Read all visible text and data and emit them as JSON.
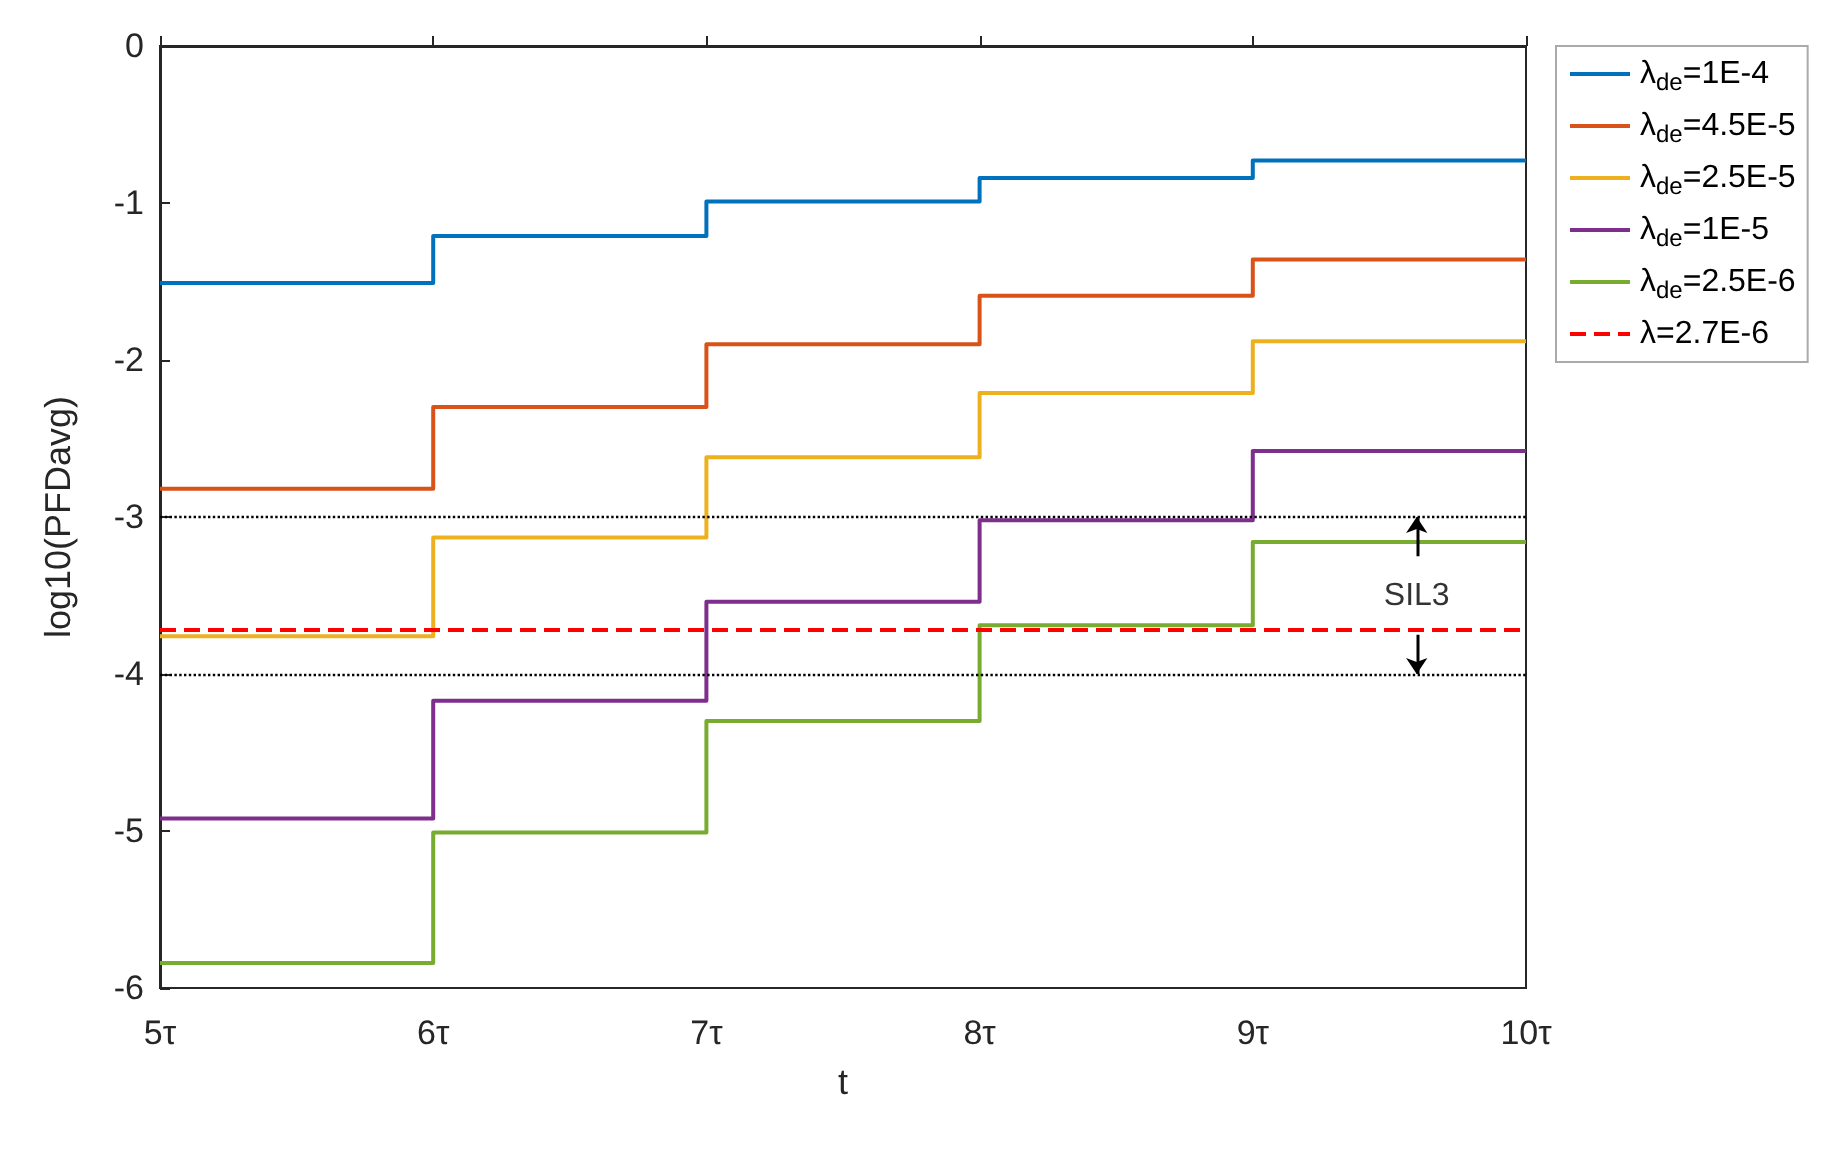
{
  "chart_data": {
    "type": "step",
    "xlabel": "t",
    "ylabel": "log10(PFDavg)",
    "x": [
      5,
      6,
      7,
      8,
      9,
      10
    ],
    "series": [
      {
        "name": "λ$_{de}$=1E-4",
        "color": "#0072bd",
        "values": [
          -1.51,
          -1.21,
          -0.99,
          -0.84,
          -0.73,
          -0.73
        ]
      },
      {
        "name": "λ$_{de}$=4.5E-5",
        "color": "#d95319",
        "values": [
          -2.82,
          -2.3,
          -1.9,
          -1.59,
          -1.36,
          -1.36
        ]
      },
      {
        "name": "λ$_{de}$=2.5E-5",
        "color": "#edb120",
        "values": [
          -3.76,
          -3.13,
          -2.62,
          -2.21,
          -1.88,
          -1.88
        ]
      },
      {
        "name": "λ$_{de}$=1E-5",
        "color": "#7e2f8e",
        "values": [
          -4.92,
          -4.17,
          -3.54,
          -3.02,
          -2.58,
          -2.58
        ]
      },
      {
        "name": "λ$_{de}$=2.5E-6",
        "color": "#77ac30",
        "values": [
          -5.84,
          -5.01,
          -4.3,
          -3.69,
          -3.16,
          -3.16
        ]
      },
      {
        "name": "λ=2.7E-6",
        "color": "#ff0000",
        "type": "line",
        "line_style": "dashed",
        "x": [
          5,
          10
        ],
        "values": [
          -3.72,
          -3.72
        ]
      }
    ],
    "ref_lines": [
      {
        "axis": "y",
        "value": -3,
        "color": "#000000",
        "line_style": "dotted"
      },
      {
        "axis": "y",
        "value": -4,
        "color": "#000000",
        "line_style": "dotted"
      }
    ],
    "annotations": [
      {
        "text": "SIL3",
        "x": 9.6,
        "y": -3
      }
    ],
    "xlim": [
      5,
      10
    ],
    "ylim": [
      -6,
      0
    ],
    "xticks": [
      {
        "value": 5,
        "label": "5τ"
      },
      {
        "value": 6,
        "label": "6τ"
      },
      {
        "value": 7,
        "label": "7τ"
      },
      {
        "value": 8,
        "label": "8τ"
      },
      {
        "value": 9,
        "label": "9τ"
      },
      {
        "value": 10,
        "label": "10τ"
      }
    ],
    "yticks": [
      -6,
      -5,
      -4,
      -3,
      -2,
      -1,
      0
    ],
    "grid": false,
    "legend": "top right",
    "line_style": "solid"
  }
}
